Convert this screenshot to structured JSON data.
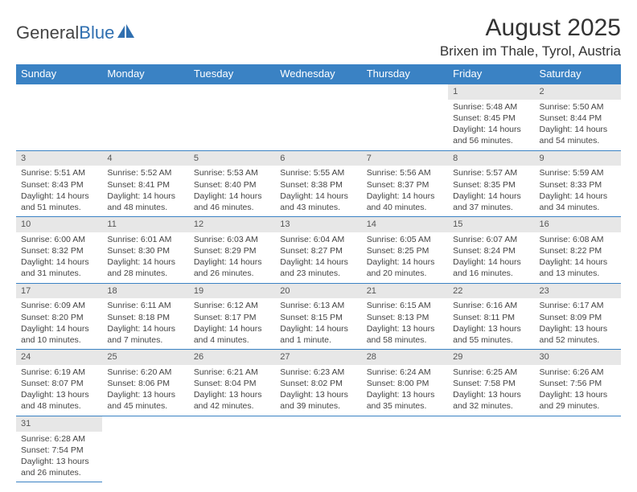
{
  "logo": {
    "part1": "General",
    "part2": "Blue"
  },
  "title": "August 2025",
  "location": "Brixen im Thale, Tyrol, Austria",
  "colors": {
    "header_bg": "#3a82c4",
    "header_text": "#ffffff",
    "daynum_bg": "#e7e7e7",
    "row_border": "#3a82c4",
    "logo_blue": "#2f6fb0",
    "text": "#333333"
  },
  "font": {
    "family": "Arial",
    "title_size": 30,
    "location_size": 17,
    "header_size": 13,
    "cell_size": 10.5,
    "daynum_size": 11
  },
  "days": [
    "Sunday",
    "Monday",
    "Tuesday",
    "Wednesday",
    "Thursday",
    "Friday",
    "Saturday"
  ],
  "weeks": [
    [
      null,
      null,
      null,
      null,
      null,
      {
        "n": "1",
        "sr": "Sunrise: 5:48 AM",
        "ss": "Sunset: 8:45 PM",
        "d1": "Daylight: 14 hours",
        "d2": "and 56 minutes."
      },
      {
        "n": "2",
        "sr": "Sunrise: 5:50 AM",
        "ss": "Sunset: 8:44 PM",
        "d1": "Daylight: 14 hours",
        "d2": "and 54 minutes."
      }
    ],
    [
      {
        "n": "3",
        "sr": "Sunrise: 5:51 AM",
        "ss": "Sunset: 8:43 PM",
        "d1": "Daylight: 14 hours",
        "d2": "and 51 minutes."
      },
      {
        "n": "4",
        "sr": "Sunrise: 5:52 AM",
        "ss": "Sunset: 8:41 PM",
        "d1": "Daylight: 14 hours",
        "d2": "and 48 minutes."
      },
      {
        "n": "5",
        "sr": "Sunrise: 5:53 AM",
        "ss": "Sunset: 8:40 PM",
        "d1": "Daylight: 14 hours",
        "d2": "and 46 minutes."
      },
      {
        "n": "6",
        "sr": "Sunrise: 5:55 AM",
        "ss": "Sunset: 8:38 PM",
        "d1": "Daylight: 14 hours",
        "d2": "and 43 minutes."
      },
      {
        "n": "7",
        "sr": "Sunrise: 5:56 AM",
        "ss": "Sunset: 8:37 PM",
        "d1": "Daylight: 14 hours",
        "d2": "and 40 minutes."
      },
      {
        "n": "8",
        "sr": "Sunrise: 5:57 AM",
        "ss": "Sunset: 8:35 PM",
        "d1": "Daylight: 14 hours",
        "d2": "and 37 minutes."
      },
      {
        "n": "9",
        "sr": "Sunrise: 5:59 AM",
        "ss": "Sunset: 8:33 PM",
        "d1": "Daylight: 14 hours",
        "d2": "and 34 minutes."
      }
    ],
    [
      {
        "n": "10",
        "sr": "Sunrise: 6:00 AM",
        "ss": "Sunset: 8:32 PM",
        "d1": "Daylight: 14 hours",
        "d2": "and 31 minutes."
      },
      {
        "n": "11",
        "sr": "Sunrise: 6:01 AM",
        "ss": "Sunset: 8:30 PM",
        "d1": "Daylight: 14 hours",
        "d2": "and 28 minutes."
      },
      {
        "n": "12",
        "sr": "Sunrise: 6:03 AM",
        "ss": "Sunset: 8:29 PM",
        "d1": "Daylight: 14 hours",
        "d2": "and 26 minutes."
      },
      {
        "n": "13",
        "sr": "Sunrise: 6:04 AM",
        "ss": "Sunset: 8:27 PM",
        "d1": "Daylight: 14 hours",
        "d2": "and 23 minutes."
      },
      {
        "n": "14",
        "sr": "Sunrise: 6:05 AM",
        "ss": "Sunset: 8:25 PM",
        "d1": "Daylight: 14 hours",
        "d2": "and 20 minutes."
      },
      {
        "n": "15",
        "sr": "Sunrise: 6:07 AM",
        "ss": "Sunset: 8:24 PM",
        "d1": "Daylight: 14 hours",
        "d2": "and 16 minutes."
      },
      {
        "n": "16",
        "sr": "Sunrise: 6:08 AM",
        "ss": "Sunset: 8:22 PM",
        "d1": "Daylight: 14 hours",
        "d2": "and 13 minutes."
      }
    ],
    [
      {
        "n": "17",
        "sr": "Sunrise: 6:09 AM",
        "ss": "Sunset: 8:20 PM",
        "d1": "Daylight: 14 hours",
        "d2": "and 10 minutes."
      },
      {
        "n": "18",
        "sr": "Sunrise: 6:11 AM",
        "ss": "Sunset: 8:18 PM",
        "d1": "Daylight: 14 hours",
        "d2": "and 7 minutes."
      },
      {
        "n": "19",
        "sr": "Sunrise: 6:12 AM",
        "ss": "Sunset: 8:17 PM",
        "d1": "Daylight: 14 hours",
        "d2": "and 4 minutes."
      },
      {
        "n": "20",
        "sr": "Sunrise: 6:13 AM",
        "ss": "Sunset: 8:15 PM",
        "d1": "Daylight: 14 hours",
        "d2": "and 1 minute."
      },
      {
        "n": "21",
        "sr": "Sunrise: 6:15 AM",
        "ss": "Sunset: 8:13 PM",
        "d1": "Daylight: 13 hours",
        "d2": "and 58 minutes."
      },
      {
        "n": "22",
        "sr": "Sunrise: 6:16 AM",
        "ss": "Sunset: 8:11 PM",
        "d1": "Daylight: 13 hours",
        "d2": "and 55 minutes."
      },
      {
        "n": "23",
        "sr": "Sunrise: 6:17 AM",
        "ss": "Sunset: 8:09 PM",
        "d1": "Daylight: 13 hours",
        "d2": "and 52 minutes."
      }
    ],
    [
      {
        "n": "24",
        "sr": "Sunrise: 6:19 AM",
        "ss": "Sunset: 8:07 PM",
        "d1": "Daylight: 13 hours",
        "d2": "and 48 minutes."
      },
      {
        "n": "25",
        "sr": "Sunrise: 6:20 AM",
        "ss": "Sunset: 8:06 PM",
        "d1": "Daylight: 13 hours",
        "d2": "and 45 minutes."
      },
      {
        "n": "26",
        "sr": "Sunrise: 6:21 AM",
        "ss": "Sunset: 8:04 PM",
        "d1": "Daylight: 13 hours",
        "d2": "and 42 minutes."
      },
      {
        "n": "27",
        "sr": "Sunrise: 6:23 AM",
        "ss": "Sunset: 8:02 PM",
        "d1": "Daylight: 13 hours",
        "d2": "and 39 minutes."
      },
      {
        "n": "28",
        "sr": "Sunrise: 6:24 AM",
        "ss": "Sunset: 8:00 PM",
        "d1": "Daylight: 13 hours",
        "d2": "and 35 minutes."
      },
      {
        "n": "29",
        "sr": "Sunrise: 6:25 AM",
        "ss": "Sunset: 7:58 PM",
        "d1": "Daylight: 13 hours",
        "d2": "and 32 minutes."
      },
      {
        "n": "30",
        "sr": "Sunrise: 6:26 AM",
        "ss": "Sunset: 7:56 PM",
        "d1": "Daylight: 13 hours",
        "d2": "and 29 minutes."
      }
    ],
    [
      {
        "n": "31",
        "sr": "Sunrise: 6:28 AM",
        "ss": "Sunset: 7:54 PM",
        "d1": "Daylight: 13 hours",
        "d2": "and 26 minutes."
      },
      null,
      null,
      null,
      null,
      null,
      null
    ]
  ]
}
